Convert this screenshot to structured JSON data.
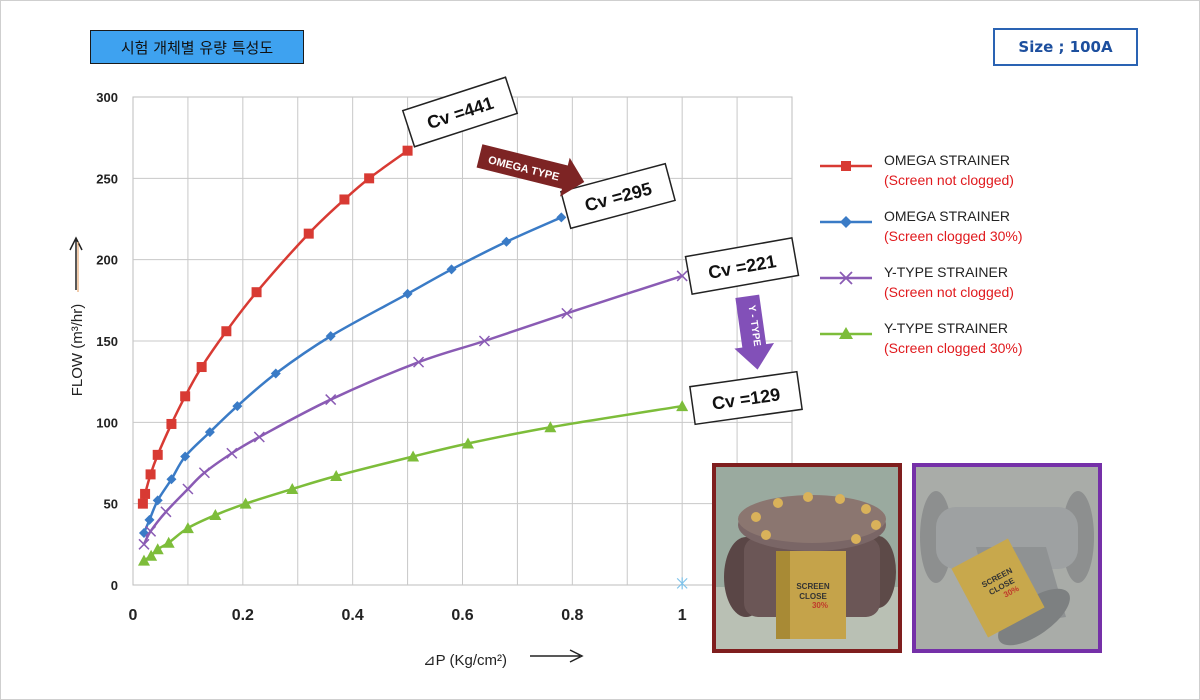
{
  "header": {
    "title": "시험 개체별 유량 특성도",
    "size_label": "Size ; 100A"
  },
  "colors": {
    "title_bg": "#3ea2f0",
    "omega_clean": "#d83a33",
    "omega_clogged": "#3a7bc6",
    "ytype_clean": "#8a5bb4",
    "ytype_clogged": "#7dbd3a",
    "omega_arrow": "#7d2424",
    "ytype_arrow": "#8250b8"
  },
  "chart_data": {
    "type": "line",
    "xlabel": "⊿P (Kg/cm²)",
    "ylabel": "FLOW (m³/hr)",
    "xlim": [
      0,
      1.2
    ],
    "ylim": [
      0,
      300
    ],
    "x_ticks": [
      "0",
      "0.2",
      "0.4",
      "0.6",
      "0.8",
      "1"
    ],
    "y_ticks": [
      "0",
      "50",
      "100",
      "150",
      "200",
      "250",
      "300"
    ],
    "grid": true,
    "legend_position": "right",
    "series": [
      {
        "name": "OMEGA STRAINER",
        "subtitle": "(Screen not clogged)",
        "marker": "square",
        "x": [
          0.018,
          0.022,
          0.032,
          0.045,
          0.07,
          0.095,
          0.125,
          0.17,
          0.225,
          0.32,
          0.385,
          0.43,
          0.5
        ],
        "y": [
          50,
          56,
          68,
          80,
          99,
          116,
          134,
          156,
          180,
          216,
          237,
          250,
          267
        ]
      },
      {
        "name": "OMEGA STRAINER",
        "subtitle": "(Screen clogged 30%)",
        "marker": "diamond",
        "x": [
          0.02,
          0.03,
          0.045,
          0.07,
          0.095,
          0.14,
          0.19,
          0.26,
          0.36,
          0.5,
          0.58,
          0.68,
          0.78
        ],
        "y": [
          32,
          40,
          52,
          65,
          79,
          94,
          110,
          130,
          153,
          179,
          194,
          211,
          226
        ]
      },
      {
        "name": "Y-TYPE STRAINER",
        "subtitle": "(Screen not clogged)",
        "marker": "x",
        "x": [
          0.02,
          0.032,
          0.06,
          0.1,
          0.13,
          0.18,
          0.23,
          0.36,
          0.52,
          0.64,
          0.79,
          1.0
        ],
        "y": [
          25,
          33,
          45,
          59,
          69,
          81,
          91,
          114,
          137,
          150,
          167,
          190
        ]
      },
      {
        "name": "Y-TYPE STRAINER",
        "subtitle": "(Screen clogged 30%)",
        "marker": "triangle",
        "x": [
          0.02,
          0.033,
          0.045,
          0.065,
          0.1,
          0.15,
          0.205,
          0.29,
          0.37,
          0.51,
          0.61,
          0.76,
          1.0
        ],
        "y": [
          15,
          18,
          22,
          26,
          35,
          43,
          50,
          59,
          67,
          79,
          87,
          97,
          110
        ]
      }
    ],
    "annotations": [
      {
        "text": "Cv =441"
      },
      {
        "text": "Cv =295"
      },
      {
        "text": "Cv =221"
      },
      {
        "text": "Cv =129"
      },
      {
        "text": "OMEGA TYPE"
      },
      {
        "text": "Y - TYPE"
      }
    ]
  },
  "photos": [
    {
      "name": "omega-strainer-photo",
      "label_lines": [
        "SCREEN",
        "CLOSE",
        "30%"
      ]
    },
    {
      "name": "y-type-strainer-photo",
      "label_lines": [
        "SCREEN",
        "CLOSE",
        "30%"
      ]
    }
  ]
}
